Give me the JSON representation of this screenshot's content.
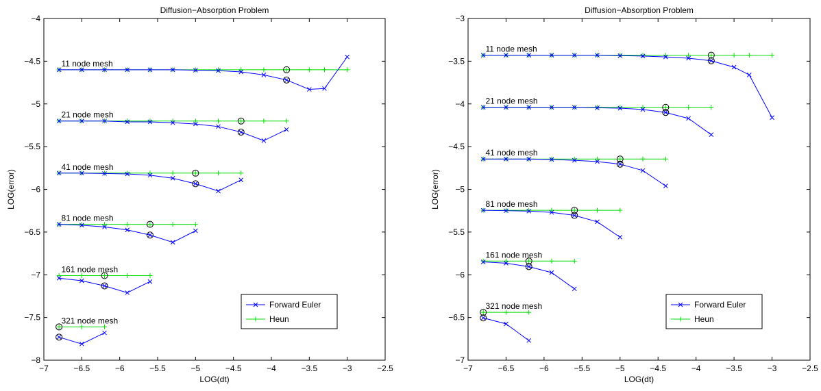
{
  "colors": {
    "forward_euler": "#0000ff",
    "heun": "#00dd00",
    "marker_circle": "#000000"
  },
  "chart_data": [
    {
      "type": "line",
      "title": "Diffusion−Absorption Problem",
      "xlabel": "LOG(dt)",
      "ylabel": "LOG(error)",
      "xlim": [
        -7,
        -2.5
      ],
      "ylim": [
        -8,
        -4
      ],
      "xticks": [
        "−7",
        "−6.5",
        "−6",
        "−5.5",
        "−5",
        "−4.5",
        "−4",
        "−3.5",
        "−3",
        "−2.5"
      ],
      "xtick_values": [
        -7,
        -6.5,
        -6,
        -5.5,
        -5,
        -4.5,
        -4,
        -3.5,
        -3,
        -2.5
      ],
      "yticks": [
        "−8",
        "−7.5",
        "−7",
        "−6.5",
        "−6",
        "−5.5",
        "−5",
        "−4.5",
        "−4"
      ],
      "ytick_values": [
        -8,
        -7.5,
        -7,
        -6.5,
        -6,
        -5.5,
        -5,
        -4.5,
        -4
      ],
      "legend": {
        "placement": "bottom-right",
        "entries": [
          "Forward Euler",
          "Heun"
        ]
      },
      "groups": [
        {
          "label": "11 node mesh",
          "euler": {
            "x": [
              -6.8,
              -6.5,
              -6.2,
              -5.9,
              -5.6,
              -5.3,
              -5.0,
              -4.7,
              -4.4,
              -4.1,
              -3.8,
              -3.5,
              -3.3,
              -3.0
            ],
            "y": [
              -4.6,
              -4.6,
              -4.6,
              -4.6,
              -4.6,
              -4.6,
              -4.605,
              -4.61,
              -4.625,
              -4.66,
              -4.72,
              -4.83,
              -4.82,
              -4.45
            ]
          },
          "heun": {
            "x": [
              -6.8,
              -6.5,
              -6.2,
              -5.9,
              -5.6,
              -5.3,
              -5.0,
              -4.7,
              -4.4,
              -4.1,
              -3.8,
              -3.5,
              -3.3,
              -3.0
            ],
            "y": [
              -4.6,
              -4.6,
              -4.6,
              -4.6,
              -4.6,
              -4.6,
              -4.6,
              -4.6,
              -4.6,
              -4.6,
              -4.6,
              -4.6,
              -4.6,
              -4.6
            ]
          },
          "circle_x": -3.8,
          "circle_euler_y": -4.72,
          "circle_heun_y": -4.6
        },
        {
          "label": "21 node mesh",
          "euler": {
            "x": [
              -6.8,
              -6.5,
              -6.2,
              -5.9,
              -5.6,
              -5.3,
              -5.0,
              -4.7,
              -4.4,
              -4.1,
              -3.8
            ],
            "y": [
              -5.2,
              -5.2,
              -5.2,
              -5.21,
              -5.21,
              -5.22,
              -5.235,
              -5.265,
              -5.33,
              -5.43,
              -5.3
            ]
          },
          "heun": {
            "x": [
              -6.8,
              -6.5,
              -6.2,
              -5.9,
              -5.6,
              -5.3,
              -5.0,
              -4.7,
              -4.4,
              -4.1,
              -3.8
            ],
            "y": [
              -5.2,
              -5.2,
              -5.2,
              -5.2,
              -5.2,
              -5.2,
              -5.2,
              -5.2,
              -5.2,
              -5.2,
              -5.2
            ]
          },
          "circle_x": -4.4,
          "circle_euler_y": -5.33,
          "circle_heun_y": -5.2
        },
        {
          "label": "41 node mesh",
          "euler": {
            "x": [
              -6.8,
              -6.5,
              -6.2,
              -5.9,
              -5.6,
              -5.3,
              -5.0,
              -4.7,
              -4.4
            ],
            "y": [
              -5.81,
              -5.81,
              -5.815,
              -5.82,
              -5.835,
              -5.87,
              -5.935,
              -6.02,
              -5.89
            ]
          },
          "heun": {
            "x": [
              -6.8,
              -6.5,
              -6.2,
              -5.9,
              -5.6,
              -5.3,
              -5.0,
              -4.7,
              -4.4
            ],
            "y": [
              -5.81,
              -5.81,
              -5.81,
              -5.81,
              -5.81,
              -5.81,
              -5.81,
              -5.81,
              -5.81
            ]
          },
          "circle_x": -5.0,
          "circle_euler_y": -5.935,
          "circle_heun_y": -5.81
        },
        {
          "label": "81 node mesh",
          "euler": {
            "x": [
              -6.8,
              -6.5,
              -6.2,
              -5.9,
              -5.6,
              -5.3,
              -5.0
            ],
            "y": [
              -6.41,
              -6.42,
              -6.44,
              -6.475,
              -6.535,
              -6.62,
              -6.485
            ]
          },
          "heun": {
            "x": [
              -6.8,
              -6.5,
              -6.2,
              -5.9,
              -5.6,
              -5.3,
              -5.0
            ],
            "y": [
              -6.41,
              -6.41,
              -6.41,
              -6.41,
              -6.41,
              -6.41,
              -6.41
            ]
          },
          "circle_x": -5.6,
          "circle_euler_y": -6.535,
          "circle_heun_y": -6.41
        },
        {
          "label": "161 node mesh",
          "euler": {
            "x": [
              -6.8,
              -6.5,
              -6.2,
              -5.9,
              -5.6
            ],
            "y": [
              -7.04,
              -7.07,
              -7.13,
              -7.21,
              -7.08
            ]
          },
          "heun": {
            "x": [
              -6.8,
              -6.5,
              -6.2,
              -5.9,
              -5.6
            ],
            "y": [
              -7.01,
              -7.01,
              -7.01,
              -7.01,
              -7.01
            ]
          },
          "circle_x": -6.2,
          "circle_euler_y": -7.13,
          "circle_heun_y": -7.01
        },
        {
          "label": "321 node mesh",
          "euler": {
            "x": [
              -6.8,
              -6.5,
              -6.2
            ],
            "y": [
              -7.73,
              -7.81,
              -7.68
            ]
          },
          "heun": {
            "x": [
              -6.8,
              -6.5,
              -6.2
            ],
            "y": [
              -7.61,
              -7.61,
              -7.61
            ]
          },
          "circle_x": -6.8,
          "circle_euler_y": -7.73,
          "circle_heun_y": -7.61
        }
      ]
    },
    {
      "type": "line",
      "title": "Diffusion−Absorption Problem",
      "xlabel": "LOG(dt)",
      "ylabel": "LOG(error)",
      "xlim": [
        -7,
        -2.5
      ],
      "ylim": [
        -7,
        -3
      ],
      "xticks": [
        "−7",
        "−6.5",
        "−6",
        "−5.5",
        "−5",
        "−4.5",
        "−4",
        "−3.5",
        "−3",
        "−2.5"
      ],
      "xtick_values": [
        -7,
        -6.5,
        -6,
        -5.5,
        -5,
        -4.5,
        -4,
        -3.5,
        -3,
        -2.5
      ],
      "yticks": [
        "−7",
        "−6.5",
        "−6",
        "−5.5",
        "−5",
        "−4.5",
        "−4",
        "−3.5",
        "−3"
      ],
      "ytick_values": [
        -7,
        -6.5,
        -6,
        -5.5,
        -5,
        -4.5,
        -4,
        -3.5,
        -3
      ],
      "legend": {
        "placement": "bottom-right",
        "entries": [
          "Forward Euler",
          "Heun"
        ]
      },
      "groups": [
        {
          "label": "11 node mesh",
          "euler": {
            "x": [
              -6.8,
              -6.5,
              -6.2,
              -5.9,
              -5.6,
              -5.3,
              -5.0,
              -4.7,
              -4.4,
              -4.1,
              -3.8,
              -3.5,
              -3.3,
              -3.0
            ],
            "y": [
              -3.43,
              -3.43,
              -3.43,
              -3.43,
              -3.43,
              -3.43,
              -3.435,
              -3.44,
              -3.45,
              -3.465,
              -3.495,
              -3.57,
              -3.66,
              -4.16
            ]
          },
          "heun": {
            "x": [
              -6.8,
              -6.5,
              -6.2,
              -5.9,
              -5.6,
              -5.3,
              -5.0,
              -4.7,
              -4.4,
              -4.1,
              -3.8,
              -3.5,
              -3.3,
              -3.0
            ],
            "y": [
              -3.43,
              -3.43,
              -3.43,
              -3.43,
              -3.43,
              -3.43,
              -3.43,
              -3.43,
              -3.43,
              -3.43,
              -3.43,
              -3.43,
              -3.43,
              -3.43
            ]
          },
          "circle_x": -3.8,
          "circle_euler_y": -3.495,
          "circle_heun_y": -3.43
        },
        {
          "label": "21 node mesh",
          "euler": {
            "x": [
              -6.8,
              -6.5,
              -6.2,
              -5.9,
              -5.6,
              -5.3,
              -5.0,
              -4.7,
              -4.4,
              -4.1,
              -3.8
            ],
            "y": [
              -4.04,
              -4.04,
              -4.04,
              -4.04,
              -4.04,
              -4.045,
              -4.05,
              -4.065,
              -4.1,
              -4.17,
              -4.36
            ]
          },
          "heun": {
            "x": [
              -6.8,
              -6.5,
              -6.2,
              -5.9,
              -5.6,
              -5.3,
              -5.0,
              -4.7,
              -4.4,
              -4.1,
              -3.8
            ],
            "y": [
              -4.04,
              -4.04,
              -4.04,
              -4.04,
              -4.04,
              -4.04,
              -4.04,
              -4.04,
              -4.04,
              -4.04,
              -4.04
            ]
          },
          "circle_x": -4.4,
          "circle_euler_y": -4.1,
          "circle_heun_y": -4.04
        },
        {
          "label": "41 node mesh",
          "euler": {
            "x": [
              -6.8,
              -6.5,
              -6.2,
              -5.9,
              -5.6,
              -5.3,
              -5.0,
              -4.7,
              -4.4
            ],
            "y": [
              -4.645,
              -4.645,
              -4.645,
              -4.65,
              -4.66,
              -4.675,
              -4.705,
              -4.78,
              -4.96
            ]
          },
          "heun": {
            "x": [
              -6.8,
              -6.5,
              -6.2,
              -5.9,
              -5.6,
              -5.3,
              -5.0,
              -4.7,
              -4.4
            ],
            "y": [
              -4.645,
              -4.645,
              -4.645,
              -4.645,
              -4.645,
              -4.645,
              -4.645,
              -4.645,
              -4.645
            ]
          },
          "circle_x": -5.0,
          "circle_euler_y": -4.705,
          "circle_heun_y": -4.645
        },
        {
          "label": "81 node mesh",
          "euler": {
            "x": [
              -6.8,
              -6.5,
              -6.2,
              -5.9,
              -5.6,
              -5.3,
              -5.0
            ],
            "y": [
              -5.245,
              -5.25,
              -5.255,
              -5.27,
              -5.305,
              -5.38,
              -5.56
            ]
          },
          "heun": {
            "x": [
              -6.8,
              -6.5,
              -6.2,
              -5.9,
              -5.6,
              -5.3,
              -5.0
            ],
            "y": [
              -5.245,
              -5.245,
              -5.245,
              -5.245,
              -5.245,
              -5.245,
              -5.245
            ]
          },
          "circle_x": -5.6,
          "circle_euler_y": -5.305,
          "circle_heun_y": -5.245
        },
        {
          "label": "161 node mesh",
          "euler": {
            "x": [
              -6.8,
              -6.5,
              -6.2,
              -5.9,
              -5.6
            ],
            "y": [
              -5.85,
              -5.865,
              -5.905,
              -5.975,
              -6.165
            ]
          },
          "heun": {
            "x": [
              -6.8,
              -6.5,
              -6.2,
              -5.9,
              -5.6
            ],
            "y": [
              -5.84,
              -5.84,
              -5.84,
              -5.84,
              -5.84
            ]
          },
          "circle_x": -6.2,
          "circle_euler_y": -5.905,
          "circle_heun_y": -5.84
        },
        {
          "label": "321 node mesh",
          "euler": {
            "x": [
              -6.8,
              -6.5,
              -6.2
            ],
            "y": [
              -6.505,
              -6.575,
              -6.77
            ]
          },
          "heun": {
            "x": [
              -6.8,
              -6.5,
              -6.2
            ],
            "y": [
              -6.44,
              -6.44,
              -6.44
            ]
          },
          "circle_x": -6.8,
          "circle_euler_y": -6.505,
          "circle_heun_y": -6.44
        }
      ]
    }
  ]
}
